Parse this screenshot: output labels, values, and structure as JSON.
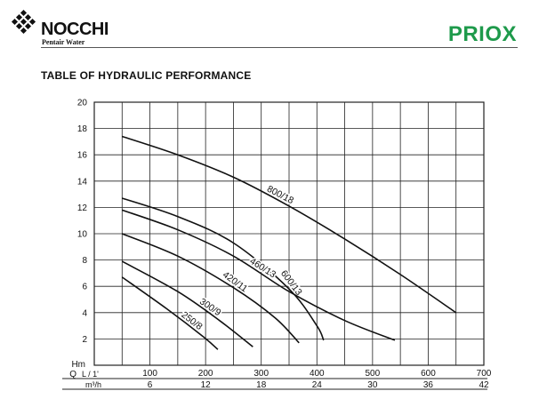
{
  "header": {
    "brand": "NOCCHI",
    "brand_sub": "Pentair Water",
    "product": "PRIOX",
    "section_title": "TABLE OF HYDRAULIC PERFORMANCE"
  },
  "colors": {
    "product": "#1e9a4b",
    "curves": "#111111",
    "grid": "#222222"
  },
  "chart_data": {
    "type": "line",
    "title": "",
    "ylabel": "Hm",
    "xlabel_primary": "L / 1'",
    "xlabel_secondary": "m³/h",
    "xlabel_q": "Q",
    "xlim": [
      0,
      700
    ],
    "ylim": [
      0,
      20
    ],
    "grid": true,
    "y_ticks": [
      2,
      4,
      6,
      8,
      10,
      12,
      14,
      16,
      18,
      20
    ],
    "x_ticks": [
      100,
      200,
      300,
      400,
      500,
      600,
      700
    ],
    "x_ticks_m3h": [
      6,
      12,
      18,
      24,
      30,
      36,
      42
    ],
    "series": [
      {
        "name": "800/18",
        "x": [
          50,
          150,
          250,
          350,
          450,
          550,
          650
        ],
        "y": [
          17.4,
          16.0,
          14.3,
          12.1,
          9.6,
          6.9,
          4.0
        ]
      },
      {
        "name": "600/13",
        "x": [
          50,
          150,
          250,
          350,
          400,
          412
        ],
        "y": [
          12.7,
          11.3,
          9.3,
          5.8,
          3.0,
          1.9
        ]
      },
      {
        "name": "460/13",
        "x": [
          50,
          150,
          250,
          350,
          450,
          540
        ],
        "y": [
          11.8,
          10.3,
          8.3,
          5.6,
          3.4,
          1.9
        ]
      },
      {
        "name": "420/11",
        "x": [
          50,
          150,
          250,
          325,
          368
        ],
        "y": [
          10.0,
          8.3,
          5.9,
          3.6,
          1.7
        ]
      },
      {
        "name": "300/9",
        "x": [
          50,
          150,
          225,
          285
        ],
        "y": [
          7.9,
          5.6,
          3.4,
          1.4
        ]
      },
      {
        "name": "250/8",
        "x": [
          50,
          130,
          195,
          222
        ],
        "y": [
          6.7,
          4.3,
          2.2,
          1.2
        ]
      }
    ]
  }
}
